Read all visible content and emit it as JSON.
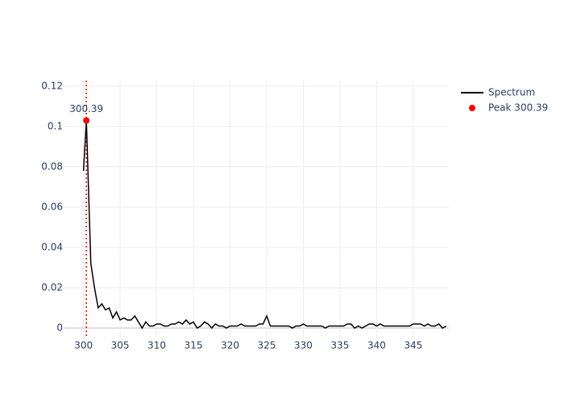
{
  "chart_data": {
    "type": "line",
    "xlim": [
      297.4,
      349.85
    ],
    "ylim": [
      -0.0052,
      0.1228
    ],
    "xticks": [
      300,
      305,
      310,
      315,
      320,
      325,
      330,
      335,
      340,
      345
    ],
    "yticks": [
      0,
      0.02,
      0.04,
      0.06,
      0.08,
      0.1,
      0.12
    ],
    "grid": true,
    "legend": "top-right",
    "series": [
      {
        "name": "Spectrum",
        "type": "line",
        "color": "#000000",
        "x": [
          300,
          300.39,
          301,
          301.5,
          302,
          302.5,
          303,
          303.5,
          304,
          304.5,
          305,
          305.5,
          306,
          306.5,
          307,
          307.5,
          308,
          308.5,
          309,
          309.5,
          310,
          310.5,
          311,
          311.5,
          312,
          312.5,
          313,
          313.5,
          314,
          314.5,
          315,
          315.5,
          316,
          316.5,
          317,
          317.5,
          318,
          318.5,
          319,
          319.5,
          320,
          320.5,
          321,
          321.5,
          322,
          322.5,
          323,
          323.5,
          324,
          324.5,
          325,
          325.5,
          326,
          326.5,
          327,
          327.5,
          328,
          328.5,
          329,
          329.5,
          330,
          330.5,
          331,
          331.5,
          332,
          332.5,
          333,
          333.5,
          334,
          334.5,
          335,
          335.5,
          336,
          336.5,
          337,
          337.5,
          338,
          338.5,
          339,
          339.5,
          340,
          340.5,
          341,
          341.5,
          342,
          342.5,
          343,
          343.5,
          344,
          344.5,
          345,
          345.5,
          346,
          346.5,
          347,
          347.5,
          348,
          348.5,
          349,
          349.5
        ],
        "values": [
          0.078,
          0.103,
          0.032,
          0.02,
          0.01,
          0.012,
          0.009,
          0.01,
          0.005,
          0.008,
          0.004,
          0.005,
          0.004,
          0.004,
          0.006,
          0.003,
          0,
          0.003,
          0.001,
          0.001,
          0.002,
          0.002,
          0.001,
          0.001,
          0.002,
          0.002,
          0.003,
          0.002,
          0.004,
          0.002,
          0.003,
          0,
          0.001,
          0.003,
          0.002,
          0,
          0.002,
          0.001,
          0.001,
          0,
          0.001,
          0.001,
          0.001,
          0.002,
          0.001,
          0.001,
          0.001,
          0.001,
          0.002,
          0.002,
          0.006,
          0.001,
          0.001,
          0.001,
          0.001,
          0.001,
          0.001,
          0,
          0.001,
          0.001,
          0.002,
          0.001,
          0.001,
          0.001,
          0.001,
          0.001,
          0,
          0.001,
          0.001,
          0.001,
          0.001,
          0.001,
          0.002,
          0.002,
          0,
          0.001,
          0,
          0.001,
          0.002,
          0.002,
          0.001,
          0.002,
          0.001,
          0.001,
          0.001,
          0.001,
          0.001,
          0.001,
          0.001,
          0.001,
          0.002,
          0.002,
          0.002,
          0.001,
          0.002,
          0.001,
          0.001,
          0.002,
          0,
          0.001
        ]
      },
      {
        "name": "Peak 300.39",
        "type": "scatter",
        "color": "#ff0000",
        "x": [
          300.39
        ],
        "values": [
          0.103
        ]
      }
    ],
    "vline": {
      "x": 300.39,
      "color": "#ff0000"
    },
    "annotations": [
      {
        "x": 300.39,
        "y": 0.103,
        "text": "300.39"
      }
    ]
  }
}
